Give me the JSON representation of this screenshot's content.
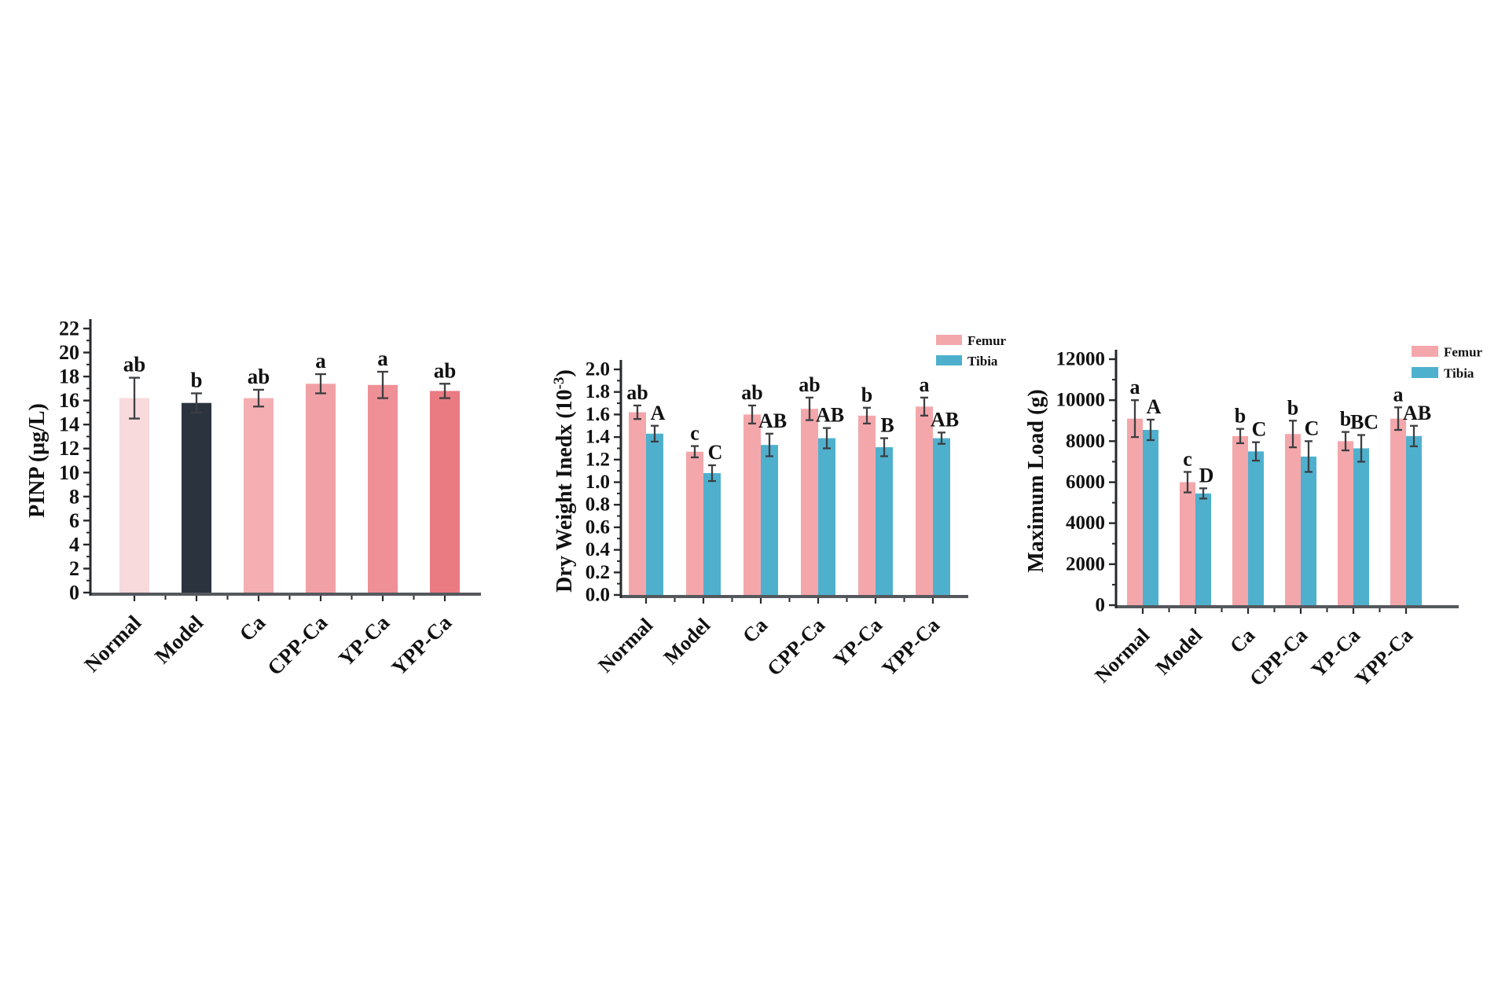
{
  "figure": {
    "background": "#ffffff",
    "text_color": "#111111",
    "y_axis_color": "#26282c",
    "x_axis_color": "#55595d",
    "error_bar_color": "#3d3f42"
  },
  "chart_data": [
    {
      "id": "pinp",
      "type": "bar",
      "title": "",
      "xlabel": "",
      "ylabel": "PINP (μg/L)",
      "categories": [
        "Normal",
        "Model",
        "Ca",
        "CPP-Ca",
        "YP-Ca",
        "YPP-Ca"
      ],
      "values": [
        16.2,
        15.8,
        16.2,
        17.4,
        17.3,
        16.8
      ],
      "errors": [
        1.7,
        0.8,
        0.7,
        0.8,
        1.1,
        0.6
      ],
      "sig_labels": [
        "ab",
        "b",
        "ab",
        "a",
        "a",
        "ab"
      ],
      "bar_colors": [
        "#F8D9DC",
        "#2B333F",
        "#F5AFB2",
        "#F1A1A6",
        "#EE9096",
        "#EB7B83"
      ],
      "ylim": [
        0,
        22
      ],
      "ytick_step": 2,
      "ytick_decimals": 0,
      "grid": false,
      "legend_position": "none"
    },
    {
      "id": "dry-weight-index",
      "type": "grouped_bar",
      "title": "",
      "xlabel": "",
      "ylabel": "Dry Weight Inedx (10⁻³)",
      "categories": [
        "Normal",
        "Model",
        "Ca",
        "CPP-Ca",
        "YP-Ca",
        "YPP-Ca"
      ],
      "series": [
        {
          "name": "Femur",
          "color": "#F4A7AB",
          "values": [
            1.62,
            1.27,
            1.6,
            1.65,
            1.59,
            1.67
          ],
          "errors": [
            0.06,
            0.05,
            0.08,
            0.1,
            0.07,
            0.08
          ],
          "sig_labels": [
            "ab",
            "c",
            "ab",
            "ab",
            "b",
            "a"
          ]
        },
        {
          "name": "Tibia",
          "color": "#4FB0CE",
          "values": [
            1.43,
            1.08,
            1.33,
            1.39,
            1.31,
            1.39
          ],
          "errors": [
            0.07,
            0.07,
            0.1,
            0.09,
            0.08,
            0.05
          ],
          "sig_labels": [
            "A",
            "C",
            "AB",
            "AB",
            "B",
            "AB"
          ]
        }
      ],
      "ylim": [
        0,
        2.0
      ],
      "ytick_step": 0.2,
      "ytick_decimals": 1,
      "grid": false,
      "legend_position": "top-right"
    },
    {
      "id": "maximum-load",
      "type": "grouped_bar",
      "title": "",
      "xlabel": "",
      "ylabel": "Maximum Load (g)",
      "categories": [
        "Normal",
        "Model",
        "Ca",
        "CPP-Ca",
        "YP-Ca",
        "YPP-Ca"
      ],
      "series": [
        {
          "name": "Femur",
          "color": "#F4A7AB",
          "values": [
            9100,
            6000,
            8250,
            8350,
            8000,
            9100
          ],
          "errors": [
            900,
            500,
            350,
            650,
            450,
            550
          ],
          "sig_labels": [
            "a",
            "c",
            "b",
            "b",
            "b",
            "a"
          ]
        },
        {
          "name": "Tibia",
          "color": "#4FB0CE",
          "values": [
            8550,
            5450,
            7500,
            7250,
            7650,
            8250
          ],
          "errors": [
            500,
            250,
            450,
            750,
            650,
            500
          ],
          "sig_labels": [
            "A",
            "D",
            "C",
            "C",
            "BC",
            "AB"
          ]
        }
      ],
      "ylim": [
        0,
        12000
      ],
      "ytick_step": 2000,
      "ytick_decimals": 0,
      "grid": false,
      "legend_position": "top-right"
    }
  ]
}
